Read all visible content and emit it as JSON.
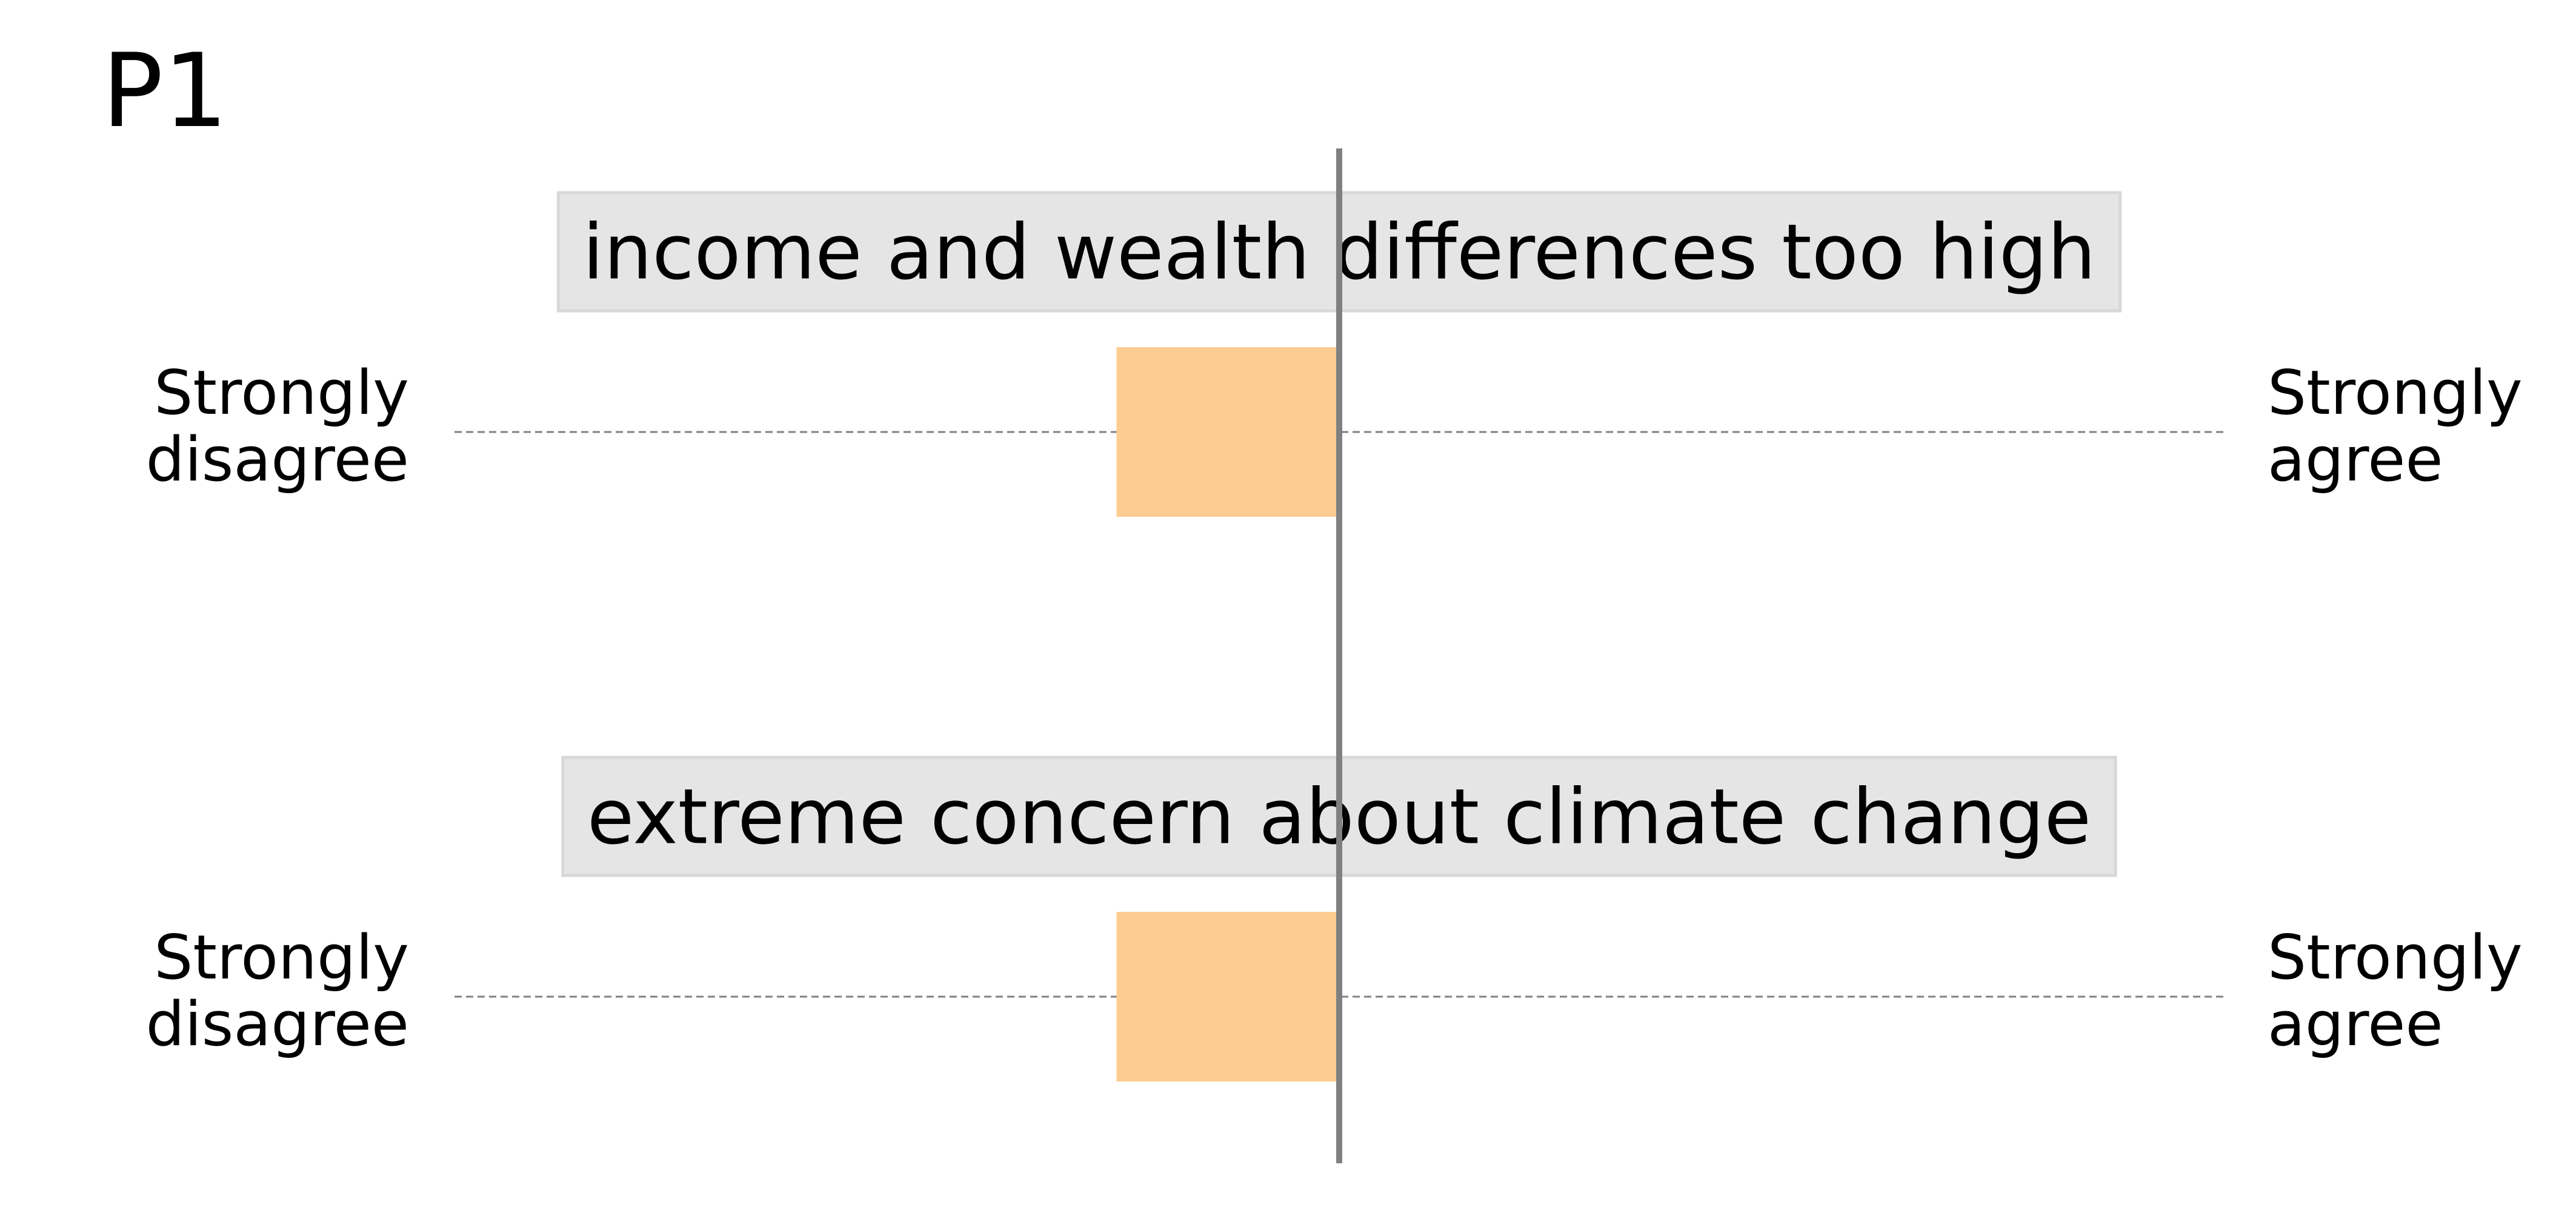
{
  "panel_label": "P1",
  "chart_data": {
    "type": "bar",
    "orientation": "horizontal",
    "categories": [
      "income and wealth differences too high",
      "extreme concern about climate change"
    ],
    "values": [
      -0.5,
      -0.5
    ],
    "xlim": [
      -1.5,
      1.0
    ],
    "scale_labels": {
      "left": [
        "Strongly",
        "disagree"
      ],
      "right": [
        "Strongly",
        "agree"
      ]
    },
    "colors": {
      "bar": "#fdcc90",
      "label_box": "#e5e5e5",
      "label_box_border": "#d8d8d8",
      "center_line": "#808080",
      "guide_line": "#808080"
    },
    "grid": false
  }
}
